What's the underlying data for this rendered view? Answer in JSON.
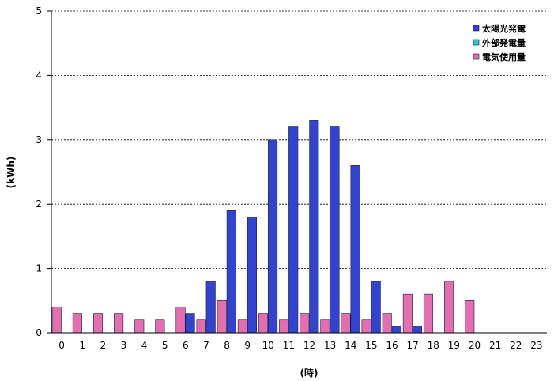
{
  "chart_data": {
    "type": "bar",
    "title": "",
    "xlabel": "(時)",
    "ylabel": "(kWh)",
    "ylim": [
      0,
      5
    ],
    "yticks": [
      "0",
      "1",
      "2",
      "3",
      "4",
      "5"
    ],
    "grid": "horizontal-dashed",
    "legend_position": "top-right",
    "categories": [
      "0",
      "1",
      "2",
      "3",
      "4",
      "5",
      "6",
      "7",
      "8",
      "9",
      "10",
      "11",
      "12",
      "13",
      "14",
      "15",
      "16",
      "17",
      "18",
      "19",
      "20",
      "21",
      "22",
      "23"
    ],
    "series": [
      {
        "name": "太陽光発電",
        "color": "#3344cc",
        "values": [
          0,
          0,
          0,
          0,
          0,
          0,
          0.3,
          0.8,
          1.9,
          1.8,
          3.0,
          3.2,
          3.3,
          3.2,
          2.6,
          0.8,
          0.1,
          0.1,
          0,
          0,
          0,
          0,
          0,
          0
        ]
      },
      {
        "name": "外部発電量",
        "color": "#33c5c5",
        "values": [
          0,
          0,
          0,
          0,
          0,
          0,
          0,
          0,
          0,
          0,
          0,
          0,
          0,
          0,
          0,
          0,
          0,
          0,
          0,
          0,
          0,
          0,
          0,
          0
        ]
      },
      {
        "name": "電気使用量",
        "color": "#e070b0",
        "values": [
          0.4,
          0.3,
          0.3,
          0.3,
          0.2,
          0.2,
          0.4,
          0.2,
          0.5,
          0.2,
          0.3,
          0.2,
          0.3,
          0.2,
          0.3,
          0.2,
          0.3,
          0.6,
          0.6,
          0.8,
          0.5,
          0,
          0,
          0
        ]
      }
    ]
  }
}
